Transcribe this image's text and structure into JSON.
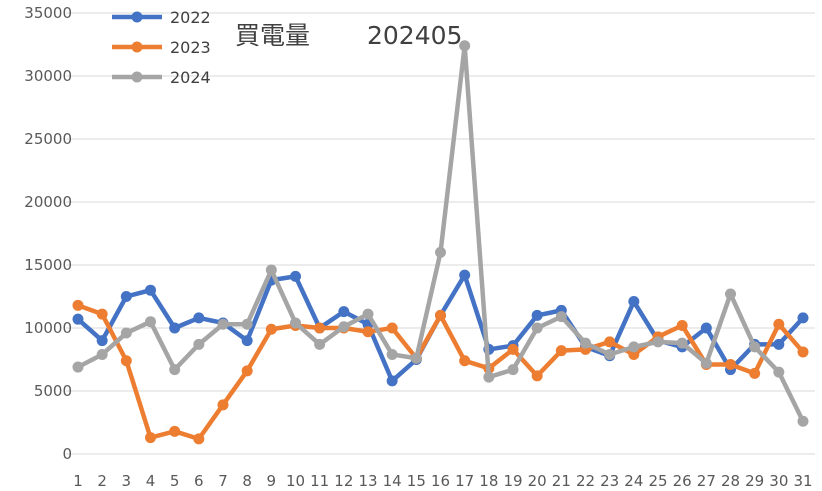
{
  "chart_data": {
    "type": "line",
    "title": "買電量",
    "subtitle": "202405",
    "x": [
      1,
      2,
      3,
      4,
      5,
      6,
      7,
      8,
      9,
      10,
      11,
      12,
      13,
      14,
      15,
      16,
      17,
      18,
      19,
      20,
      21,
      22,
      23,
      24,
      25,
      26,
      27,
      28,
      29,
      30,
      31
    ],
    "ylim": [
      0,
      35000
    ],
    "yticks": [
      0,
      5000,
      10000,
      15000,
      20000,
      25000,
      30000,
      35000
    ],
    "grid": true,
    "legend_position": "top-left",
    "series": [
      {
        "name": "2022",
        "color": "#4472C4",
        "values": [
          10700,
          9000,
          12500,
          13000,
          10000,
          10800,
          10400,
          9000,
          13800,
          14100,
          10000,
          11300,
          10300,
          5800,
          7500,
          11000,
          14200,
          8300,
          8600,
          11000,
          11400,
          8500,
          7800,
          12100,
          9000,
          8500,
          10000,
          6700,
          8700,
          8700,
          10800
        ]
      },
      {
        "name": "2023",
        "color": "#ED7D31",
        "values": [
          11800,
          11100,
          7400,
          1300,
          1800,
          1200,
          3900,
          6600,
          9900,
          10200,
          10000,
          10000,
          9700,
          10000,
          7600,
          11000,
          7400,
          6800,
          8300,
          6200,
          8200,
          8300,
          8900,
          7900,
          9300,
          10200,
          7100,
          7100,
          6400,
          10300,
          8100
        ]
      },
      {
        "name": "2024",
        "color": "#A5A5A5",
        "values": [
          6900,
          7900,
          9600,
          10500,
          6700,
          8700,
          10300,
          10300,
          14600,
          10400,
          8700,
          10100,
          11100,
          7900,
          7600,
          16000,
          32400,
          6100,
          6700,
          10000,
          10900,
          8800,
          7900,
          8500,
          8900,
          8800,
          7200,
          12700,
          8500,
          6500,
          2600
        ]
      }
    ]
  }
}
